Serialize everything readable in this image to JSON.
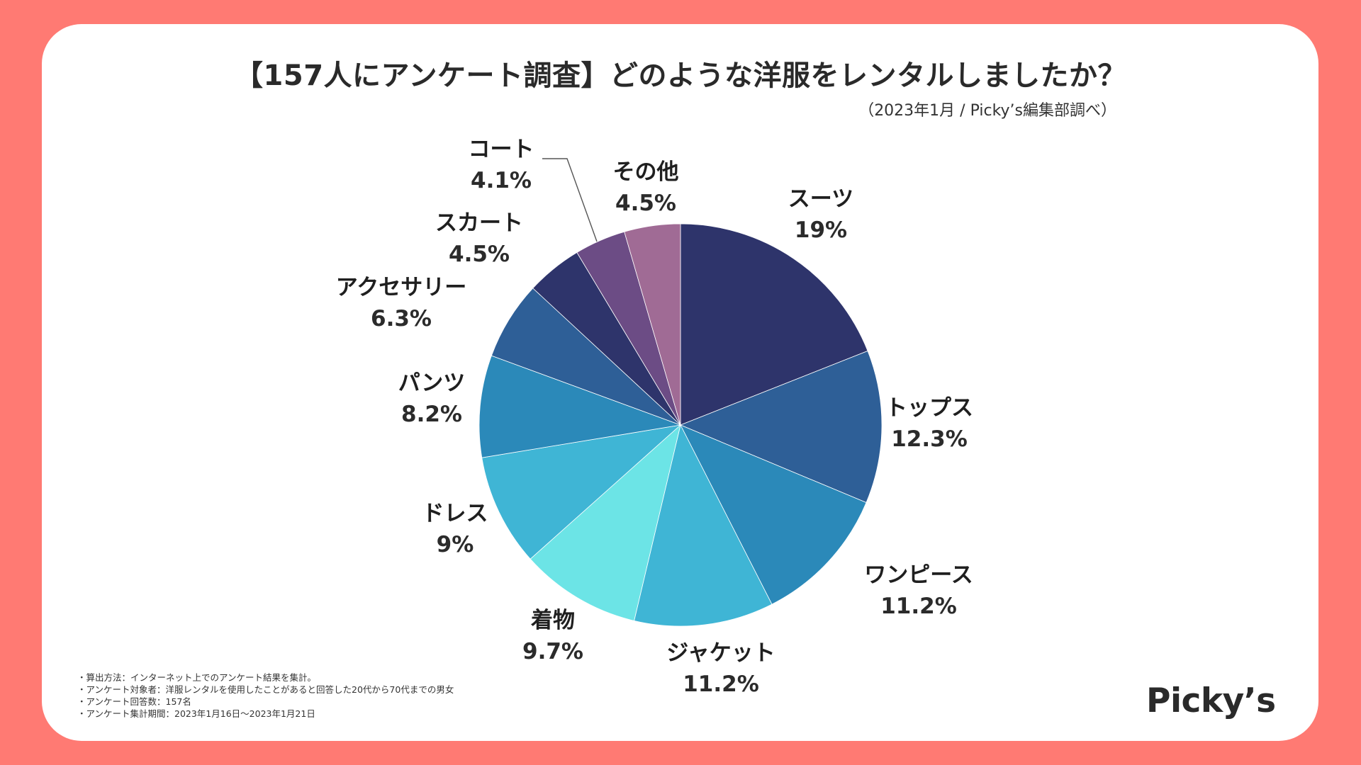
{
  "colors": {
    "background": "#ff7a73",
    "card": "#ffffff",
    "text": "#2a2a2a"
  },
  "header": {
    "title": "【157人にアンケート調査】どのような洋服をレンタルしましたか？",
    "source": "（2023年1月 / Picky’s編集部調べ）"
  },
  "notes": [
    "・算出方法：インターネット上でのアンケート結果を集計。",
    "・アンケート対象者：洋服レンタルを使用したことがあると回答した20代から70代までの男女",
    "・アンケート回答数：157名",
    "・アンケート集計期間：2023年1月16日〜2023年1月21日"
  ],
  "logo": "Picky’s",
  "chart_data": {
    "type": "pie",
    "title": "【157人にアンケート調査】どのような洋服をレンタルしましたか？",
    "start": "12 o'clock",
    "direction": "clockwise",
    "slices": [
      {
        "label": "スーツ",
        "value": 19,
        "value_label": "19%",
        "color": "#2e346b"
      },
      {
        "label": "トップス",
        "value": 12.3,
        "value_label": "12.3%",
        "color": "#2e5f97"
      },
      {
        "label": "ワンピース",
        "value": 11.2,
        "value_label": "11.2%",
        "color": "#2b89b9"
      },
      {
        "label": "ジャケット",
        "value": 11.2,
        "value_label": "11.2%",
        "color": "#3fb5d5"
      },
      {
        "label": "着物",
        "value": 9.7,
        "value_label": "9.7%",
        "color": "#6ce4e6"
      },
      {
        "label": "ドレス",
        "value": 9,
        "value_label": "9%",
        "color": "#3fb5d5"
      },
      {
        "label": "パンツ",
        "value": 8.2,
        "value_label": "8.2%",
        "color": "#2b89b9"
      },
      {
        "label": "アクセサリー",
        "value": 6.3,
        "value_label": "6.3%",
        "color": "#2e5f97"
      },
      {
        "label": "スカート",
        "value": 4.5,
        "value_label": "4.5%",
        "color": "#2e346b"
      },
      {
        "label": "コート",
        "value": 4.1,
        "value_label": "4.1%",
        "color": "#6c4c85"
      },
      {
        "label": "その他",
        "value": 4.5,
        "value_label": "4.5%",
        "color": "#a06b95"
      }
    ]
  }
}
